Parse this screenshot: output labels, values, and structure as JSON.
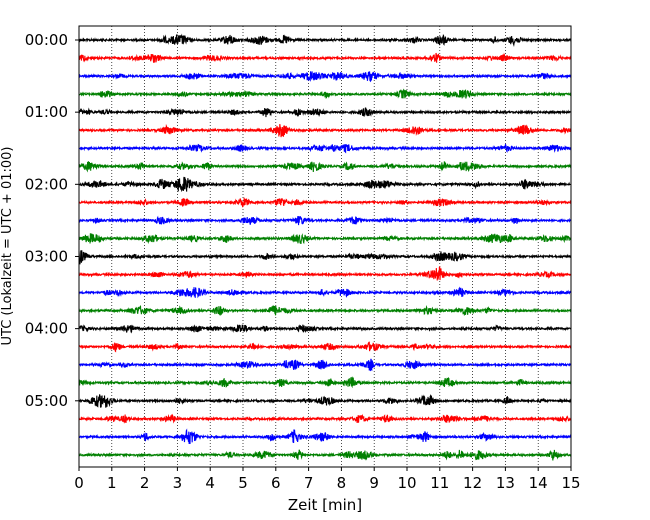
{
  "chart_data": {
    "type": "line",
    "title": "",
    "xlabel": "Zeit  [min]",
    "ylabel": "UTC (Lokalzeit = UTC + 01:00)",
    "xlim": [
      0,
      15
    ],
    "x_ticks": [
      "0",
      "1",
      "2",
      "3",
      "4",
      "5",
      "6",
      "7",
      "8",
      "9",
      "10",
      "11",
      "12",
      "13",
      "14",
      "15"
    ],
    "y_ticks": [
      "00:00",
      "01:00",
      "02:00",
      "03:00",
      "04:00",
      "05:00"
    ],
    "grid": "vertical dotted",
    "trace_colors": [
      "#000000",
      "#ff0000",
      "#0000ff",
      "#008000"
    ],
    "series": [
      {
        "start": "00:00"
      },
      {
        "start": "00:15"
      },
      {
        "start": "00:30"
      },
      {
        "start": "00:45"
      },
      {
        "start": "01:00"
      },
      {
        "start": "01:15"
      },
      {
        "start": "01:30"
      },
      {
        "start": "01:45"
      },
      {
        "start": "02:00"
      },
      {
        "start": "02:15"
      },
      {
        "start": "02:30"
      },
      {
        "start": "02:45"
      },
      {
        "start": "03:00"
      },
      {
        "start": "03:15"
      },
      {
        "start": "03:30"
      },
      {
        "start": "03:45"
      },
      {
        "start": "04:00"
      },
      {
        "start": "04:15"
      },
      {
        "start": "04:30"
      },
      {
        "start": "04:45"
      },
      {
        "start": "05:00"
      },
      {
        "start": "05:15"
      },
      {
        "start": "05:30"
      },
      {
        "start": "05:45"
      }
    ]
  }
}
